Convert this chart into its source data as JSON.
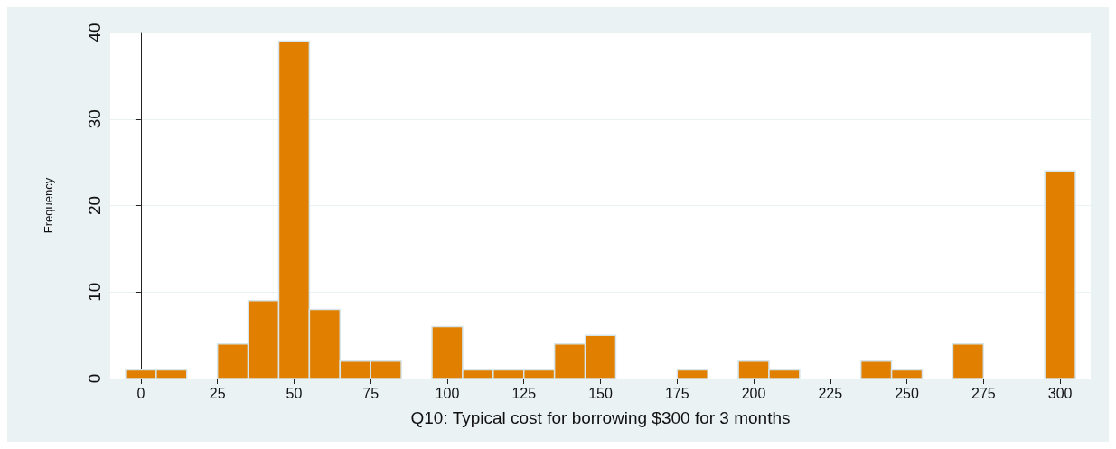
{
  "chart_data": {
    "type": "histogram",
    "xlabel": "Q10: Typical cost for borrowing $300 for 3 months",
    "ylabel": "Frequency",
    "bins": [
      -5,
      5,
      15,
      25,
      35,
      45,
      55,
      65,
      75,
      85,
      95,
      105,
      115,
      125,
      135,
      145,
      155,
      165,
      175,
      185,
      195,
      205,
      215,
      225,
      235,
      245,
      255,
      265,
      275,
      285,
      295,
      305
    ],
    "values": [
      1,
      1,
      0,
      4,
      9,
      39,
      8,
      2,
      2,
      0,
      6,
      1,
      1,
      1,
      4,
      5,
      0,
      0,
      1,
      0,
      2,
      1,
      0,
      0,
      2,
      1,
      0,
      4,
      0,
      0,
      24
    ],
    "color": "#e07f00",
    "xlim": [
      -10,
      310
    ],
    "xticks": [
      0,
      25,
      50,
      75,
      100,
      125,
      150,
      175,
      200,
      225,
      250,
      275,
      300
    ],
    "ylim": [
      0,
      40
    ],
    "yticks": [
      0,
      10,
      20,
      30,
      40
    ],
    "grid": "y"
  }
}
